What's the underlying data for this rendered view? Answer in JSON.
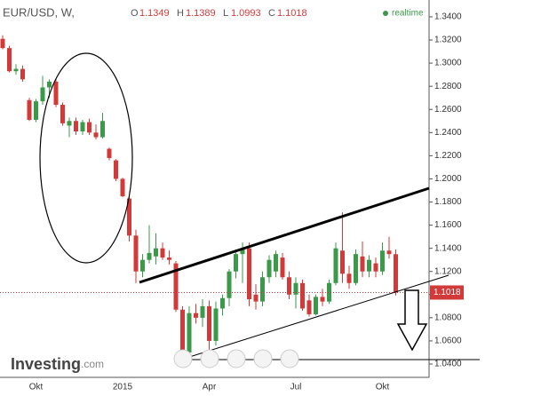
{
  "chart_data": {
    "type": "candlestick",
    "title": "EUR/USD, W,",
    "ohlc_labels": [
      "O",
      "H",
      "L",
      "C"
    ],
    "status": "realtime",
    "brand": "Investing",
    "brand_suffix": ".com",
    "up_color": "#3a9a4a",
    "down_color": "#d23a3a",
    "categories": [
      null,
      null,
      null,
      null,
      null,
      "Okt",
      null,
      null,
      null,
      null,
      null,
      null,
      null,
      null,
      null,
      null,
      null,
      null,
      "2015",
      null,
      null,
      null,
      null,
      null,
      null,
      null,
      null,
      null,
      null,
      null,
      null,
      "Apr",
      null,
      null,
      null,
      null,
      null,
      null,
      null,
      null,
      null,
      null,
      null,
      null,
      "Jul",
      null,
      null,
      null,
      null,
      null,
      null,
      null,
      null,
      null,
      null,
      null,
      null,
      "Okt",
      null,
      null
    ],
    "open": [
      1.321,
      1.313,
      1.293,
      1.295,
      1.268,
      1.251,
      1.267,
      1.279,
      1.284,
      1.264,
      1.246,
      1.25,
      1.241,
      1.249,
      1.24,
      1.236,
      1.226,
      1.216,
      1.2,
      1.183,
      1.151,
      1.12,
      1.13,
      1.133,
      1.14,
      1.132,
      1.127,
      1.087,
      1.05,
      1.084,
      1.08,
      1.09,
      1.06,
      1.088,
      1.097,
      1.12,
      1.135,
      1.14,
      1.1,
      1.094,
      1.115,
      1.12,
      1.132,
      1.115,
      1.1,
      1.11,
      1.095,
      1.083,
      1.098,
      1.094,
      1.11,
      1.138,
      1.118,
      1.11,
      1.133,
      1.12,
      1.127,
      1.12,
      1.138,
      1.1349
    ],
    "high": [
      1.324,
      1.315,
      1.299,
      1.298,
      1.27,
      1.269,
      1.289,
      1.286,
      1.286,
      1.266,
      1.253,
      1.253,
      1.251,
      1.252,
      1.247,
      1.257,
      1.227,
      1.217,
      1.201,
      1.186,
      1.156,
      1.135,
      1.16,
      1.153,
      1.145,
      1.138,
      1.129,
      1.09,
      1.09,
      1.092,
      1.096,
      1.095,
      1.094,
      1.1,
      1.122,
      1.139,
      1.145,
      1.145,
      1.109,
      1.12,
      1.134,
      1.138,
      1.136,
      1.12,
      1.115,
      1.113,
      1.1,
      1.1,
      1.105,
      1.113,
      1.145,
      1.171,
      1.125,
      1.139,
      1.146,
      1.134,
      1.132,
      1.145,
      1.15,
      1.1389
    ],
    "low": [
      1.312,
      1.292,
      1.29,
      1.284,
      1.25,
      1.249,
      1.264,
      1.27,
      1.262,
      1.246,
      1.236,
      1.238,
      1.238,
      1.238,
      1.234,
      1.235,
      1.216,
      1.198,
      1.184,
      1.146,
      1.11,
      1.115,
      1.127,
      1.126,
      1.13,
      1.126,
      1.085,
      1.046,
      1.048,
      1.075,
      1.072,
      1.046,
      1.056,
      1.082,
      1.09,
      1.114,
      1.11,
      1.09,
      1.087,
      1.09,
      1.11,
      1.115,
      1.113,
      1.096,
      1.088,
      1.086,
      1.081,
      1.082,
      1.09,
      1.092,
      1.108,
      1.11,
      1.105,
      1.108,
      1.115,
      1.115,
      1.115,
      1.117,
      1.131,
      1.0993
    ],
    "close": [
      1.313,
      1.293,
      1.295,
      1.286,
      1.251,
      1.267,
      1.279,
      1.284,
      1.264,
      1.248,
      1.25,
      1.241,
      1.249,
      1.24,
      1.236,
      1.25,
      1.218,
      1.2,
      1.185,
      1.151,
      1.12,
      1.13,
      1.136,
      1.14,
      1.132,
      1.13,
      1.087,
      1.05,
      1.084,
      1.08,
      1.09,
      1.06,
      1.088,
      1.097,
      1.12,
      1.135,
      1.14,
      1.096,
      1.094,
      1.115,
      1.13,
      1.135,
      1.115,
      1.1,
      1.11,
      1.088,
      1.083,
      1.098,
      1.094,
      1.11,
      1.14,
      1.118,
      1.11,
      1.135,
      1.12,
      1.13,
      1.12,
      1.138,
      1.135,
      1.1018
    ],
    "ylim": [
      1.0285,
      1.3507
    ],
    "yticks": [
      {
        "value": 1.34,
        "label": "1.3400"
      },
      {
        "value": 1.32,
        "label": "1.3200"
      },
      {
        "value": 1.3,
        "label": "1.3000"
      },
      {
        "value": 1.28,
        "label": "1.2800"
      },
      {
        "value": 1.26,
        "label": "1.2600"
      },
      {
        "value": 1.24,
        "label": "1.2400"
      },
      {
        "value": 1.22,
        "label": "1.2200"
      },
      {
        "value": 1.2,
        "label": "1.2000"
      },
      {
        "value": 1.18,
        "label": "1.1800"
      },
      {
        "value": 1.16,
        "label": "1.1600"
      },
      {
        "value": 1.14,
        "label": "1.1400"
      },
      {
        "value": 1.12,
        "label": "1.1200"
      },
      {
        "value": 1.1,
        "label": "1.1000"
      },
      {
        "value": 1.08,
        "label": "1.0800"
      },
      {
        "value": 1.06,
        "label": "1.0600"
      },
      {
        "value": 1.04,
        "label": "1.0400"
      }
    ],
    "grid": false
  }
}
